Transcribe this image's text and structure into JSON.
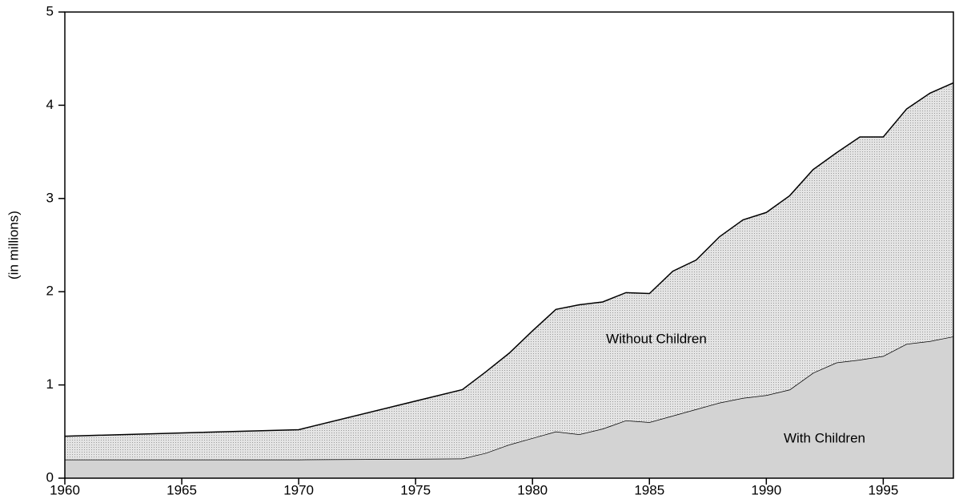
{
  "chart_data": {
    "type": "stacked_area",
    "ylabel": "(in millions)",
    "x": [
      1960,
      1970,
      1977,
      1978,
      1979,
      1980,
      1981,
      1982,
      1983,
      1984,
      1985,
      1986,
      1987,
      1988,
      1989,
      1990,
      1991,
      1992,
      1993,
      1994,
      1995,
      1996,
      1997,
      1998
    ],
    "series": [
      {
        "name": "With Children",
        "color": "#d3d3d3",
        "values": [
          0.2,
          0.2,
          0.21,
          0.27,
          0.36,
          0.43,
          0.5,
          0.47,
          0.53,
          0.62,
          0.6,
          0.67,
          0.74,
          0.81,
          0.86,
          0.89,
          0.95,
          1.13,
          1.24,
          1.27,
          1.31,
          1.44,
          1.47,
          1.52
        ]
      },
      {
        "name": "Without Children",
        "color": "#e4e4e4",
        "values": [
          0.25,
          0.32,
          0.74,
          0.87,
          0.98,
          1.15,
          1.31,
          1.39,
          1.36,
          1.37,
          1.38,
          1.55,
          1.6,
          1.78,
          1.91,
          1.96,
          2.08,
          2.18,
          2.25,
          2.39,
          2.35,
          2.52,
          2.66,
          2.72
        ]
      }
    ],
    "xlim": [
      1960,
      1998
    ],
    "xticks": [
      1960,
      1965,
      1970,
      1975,
      1980,
      1985,
      1990,
      1995
    ],
    "ylim": [
      0,
      5
    ],
    "yticks": [
      0,
      1,
      2,
      3,
      4,
      5
    ]
  }
}
